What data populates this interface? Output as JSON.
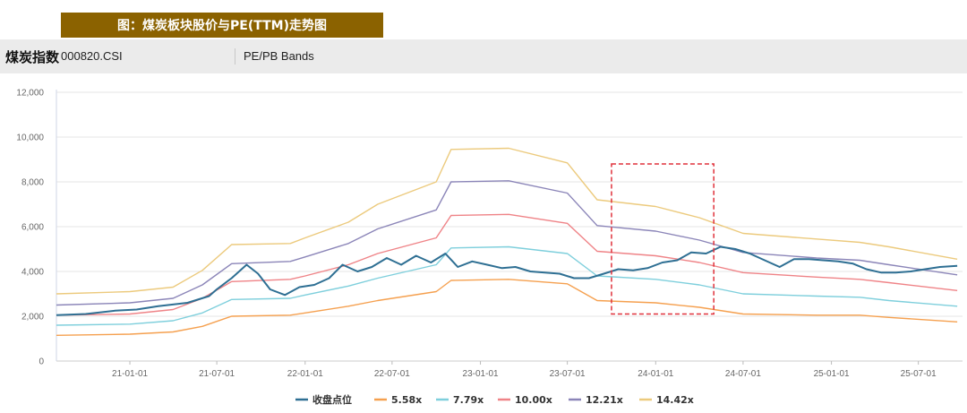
{
  "header": {
    "banner_title": "图：煤炭板块股价与PE(TTM)走势图",
    "index_name": "煤炭指数",
    "index_code": "000820.CSI",
    "chart_title": "PE/PB Bands"
  },
  "chart_data": {
    "type": "line",
    "title": "PE/PB Bands",
    "xlabel": "",
    "ylabel": "",
    "ylim": [
      0,
      12000
    ],
    "y_ticks": [
      0,
      2000,
      4000,
      6000,
      8000,
      10000,
      12000
    ],
    "y_tick_labels": [
      "0",
      "2,000",
      "4,000",
      "6,000",
      "8,000",
      "10,000",
      "12,000"
    ],
    "x_range": [
      "2020-08-01",
      "2025-10-01"
    ],
    "x_ticks": [
      "2021-01-01",
      "2021-07-01",
      "2022-01-01",
      "2022-07-01",
      "2023-01-01",
      "2023-07-01",
      "2024-01-01",
      "2024-07-01",
      "2025-01-01",
      "2025-07-01"
    ],
    "x_tick_labels": [
      "21-01-01",
      "21-07-01",
      "22-01-01",
      "22-07-01",
      "23-01-01",
      "23-07-01",
      "24-01-01",
      "24-07-01",
      "25-01-01",
      "25-07-01"
    ],
    "grid": "horizontal",
    "legend_position": "bottom",
    "highlight_box": {
      "x_start": "2023-10-01",
      "x_end": "2024-05-01",
      "y_low": 2100,
      "y_high": 8800,
      "color": "#e0313b"
    },
    "series": [
      {
        "name": "收盘点位",
        "color": "#2e6f93",
        "points": [
          [
            "2020-08-01",
            2050
          ],
          [
            "2020-10-01",
            2100
          ],
          [
            "2020-12-01",
            2250
          ],
          [
            "2021-01-15",
            2300
          ],
          [
            "2021-03-01",
            2450
          ],
          [
            "2021-05-01",
            2600
          ],
          [
            "2021-06-15",
            2900
          ],
          [
            "2021-07-01",
            3200
          ],
          [
            "2021-08-01",
            3700
          ],
          [
            "2021-09-01",
            4300
          ],
          [
            "2021-09-25",
            3900
          ],
          [
            "2021-10-20",
            3200
          ],
          [
            "2021-11-20",
            2950
          ],
          [
            "2021-12-20",
            3300
          ],
          [
            "2022-01-20",
            3400
          ],
          [
            "2022-02-20",
            3700
          ],
          [
            "2022-03-20",
            4300
          ],
          [
            "2022-04-20",
            4000
          ],
          [
            "2022-05-20",
            4200
          ],
          [
            "2022-06-20",
            4600
          ],
          [
            "2022-07-20",
            4300
          ],
          [
            "2022-08-20",
            4700
          ],
          [
            "2022-09-20",
            4400
          ],
          [
            "2022-10-20",
            4800
          ],
          [
            "2022-11-15",
            4200
          ],
          [
            "2022-12-15",
            4450
          ],
          [
            "2023-01-15",
            4300
          ],
          [
            "2023-02-15",
            4150
          ],
          [
            "2023-03-15",
            4200
          ],
          [
            "2023-04-15",
            4000
          ],
          [
            "2023-05-15",
            3950
          ],
          [
            "2023-06-15",
            3900
          ],
          [
            "2023-07-15",
            3700
          ],
          [
            "2023-08-15",
            3700
          ],
          [
            "2023-09-15",
            3900
          ],
          [
            "2023-10-15",
            4100
          ],
          [
            "2023-11-15",
            4050
          ],
          [
            "2023-12-15",
            4150
          ],
          [
            "2024-01-15",
            4400
          ],
          [
            "2024-02-15",
            4500
          ],
          [
            "2024-03-15",
            4850
          ],
          [
            "2024-04-15",
            4800
          ],
          [
            "2024-05-15",
            5100
          ],
          [
            "2024-06-15",
            5000
          ],
          [
            "2024-07-15",
            4800
          ],
          [
            "2024-08-15",
            4500
          ],
          [
            "2024-09-15",
            4200
          ],
          [
            "2024-10-15",
            4550
          ],
          [
            "2024-11-15",
            4550
          ],
          [
            "2024-12-15",
            4500
          ],
          [
            "2025-01-15",
            4450
          ],
          [
            "2025-02-15",
            4350
          ],
          [
            "2025-03-15",
            4100
          ],
          [
            "2025-04-15",
            3950
          ],
          [
            "2025-05-15",
            3950
          ],
          [
            "2025-06-15",
            4000
          ],
          [
            "2025-07-15",
            4100
          ],
          [
            "2025-08-15",
            4200
          ],
          [
            "2025-09-20",
            4250
          ]
        ]
      },
      {
        "name": "5.58x",
        "color": "#f5a04f",
        "points": [
          [
            "2020-08-01",
            1150
          ],
          [
            "2021-01-01",
            1200
          ],
          [
            "2021-04-01",
            1300
          ],
          [
            "2021-06-01",
            1550
          ],
          [
            "2021-08-01",
            2000
          ],
          [
            "2021-12-01",
            2050
          ],
          [
            "2022-01-01",
            2150
          ],
          [
            "2022-04-01",
            2450
          ],
          [
            "2022-06-01",
            2700
          ],
          [
            "2022-10-01",
            3100
          ],
          [
            "2022-11-01",
            3600
          ],
          [
            "2023-03-01",
            3650
          ],
          [
            "2023-07-01",
            3450
          ],
          [
            "2023-09-01",
            2700
          ],
          [
            "2024-01-01",
            2600
          ],
          [
            "2024-04-01",
            2400
          ],
          [
            "2024-07-01",
            2100
          ],
          [
            "2024-12-01",
            2050
          ],
          [
            "2025-03-01",
            2050
          ],
          [
            "2025-05-01",
            1950
          ],
          [
            "2025-09-20",
            1750
          ]
        ]
      },
      {
        "name": "7.79x",
        "color": "#7ecfdc",
        "points": [
          [
            "2020-08-01",
            1600
          ],
          [
            "2021-01-01",
            1650
          ],
          [
            "2021-04-01",
            1800
          ],
          [
            "2021-06-01",
            2150
          ],
          [
            "2021-08-01",
            2750
          ],
          [
            "2021-12-01",
            2800
          ],
          [
            "2022-01-01",
            2950
          ],
          [
            "2022-04-01",
            3350
          ],
          [
            "2022-06-01",
            3700
          ],
          [
            "2022-10-01",
            4300
          ],
          [
            "2022-11-01",
            5050
          ],
          [
            "2023-03-01",
            5100
          ],
          [
            "2023-07-01",
            4800
          ],
          [
            "2023-09-01",
            3800
          ],
          [
            "2024-01-01",
            3650
          ],
          [
            "2024-04-01",
            3400
          ],
          [
            "2024-07-01",
            3000
          ],
          [
            "2024-12-01",
            2900
          ],
          [
            "2025-03-01",
            2850
          ],
          [
            "2025-05-01",
            2700
          ],
          [
            "2025-09-20",
            2450
          ]
        ]
      },
      {
        "name": "10.00x",
        "color": "#ef8387",
        "points": [
          [
            "2020-08-01",
            2050
          ],
          [
            "2021-01-01",
            2100
          ],
          [
            "2021-04-01",
            2300
          ],
          [
            "2021-06-01",
            2800
          ],
          [
            "2021-08-01",
            3550
          ],
          [
            "2021-12-01",
            3650
          ],
          [
            "2022-01-01",
            3800
          ],
          [
            "2022-04-01",
            4300
          ],
          [
            "2022-06-01",
            4800
          ],
          [
            "2022-10-01",
            5500
          ],
          [
            "2022-11-01",
            6500
          ],
          [
            "2023-03-01",
            6550
          ],
          [
            "2023-07-01",
            6150
          ],
          [
            "2023-09-01",
            4900
          ],
          [
            "2024-01-01",
            4700
          ],
          [
            "2024-04-01",
            4400
          ],
          [
            "2024-07-01",
            3950
          ],
          [
            "2024-12-01",
            3750
          ],
          [
            "2025-03-01",
            3650
          ],
          [
            "2025-05-01",
            3500
          ],
          [
            "2025-09-20",
            3150
          ]
        ]
      },
      {
        "name": "12.21x",
        "color": "#8b85b8",
        "points": [
          [
            "2020-08-01",
            2500
          ],
          [
            "2021-01-01",
            2600
          ],
          [
            "2021-04-01",
            2800
          ],
          [
            "2021-06-01",
            3400
          ],
          [
            "2021-08-01",
            4350
          ],
          [
            "2021-12-01",
            4450
          ],
          [
            "2022-01-01",
            4650
          ],
          [
            "2022-04-01",
            5250
          ],
          [
            "2022-06-01",
            5900
          ],
          [
            "2022-10-01",
            6750
          ],
          [
            "2022-11-01",
            8000
          ],
          [
            "2023-03-01",
            8050
          ],
          [
            "2023-07-01",
            7500
          ],
          [
            "2023-09-01",
            6050
          ],
          [
            "2024-01-01",
            5800
          ],
          [
            "2024-04-01",
            5400
          ],
          [
            "2024-07-01",
            4850
          ],
          [
            "2024-12-01",
            4600
          ],
          [
            "2025-03-01",
            4500
          ],
          [
            "2025-05-01",
            4300
          ],
          [
            "2025-09-20",
            3850
          ]
        ]
      },
      {
        "name": "14.42x",
        "color": "#ecca7d",
        "points": [
          [
            "2020-08-01",
            3000
          ],
          [
            "2021-01-01",
            3100
          ],
          [
            "2021-04-01",
            3300
          ],
          [
            "2021-06-01",
            4050
          ],
          [
            "2021-08-01",
            5200
          ],
          [
            "2021-12-01",
            5250
          ],
          [
            "2022-01-01",
            5500
          ],
          [
            "2022-04-01",
            6200
          ],
          [
            "2022-06-01",
            7000
          ],
          [
            "2022-10-01",
            8000
          ],
          [
            "2022-11-01",
            9450
          ],
          [
            "2023-03-01",
            9500
          ],
          [
            "2023-07-01",
            8850
          ],
          [
            "2023-09-01",
            7200
          ],
          [
            "2024-01-01",
            6900
          ],
          [
            "2024-04-01",
            6400
          ],
          [
            "2024-07-01",
            5700
          ],
          [
            "2024-12-01",
            5450
          ],
          [
            "2025-03-01",
            5300
          ],
          [
            "2025-05-01",
            5100
          ],
          [
            "2025-09-20",
            4550
          ]
        ]
      }
    ]
  }
}
